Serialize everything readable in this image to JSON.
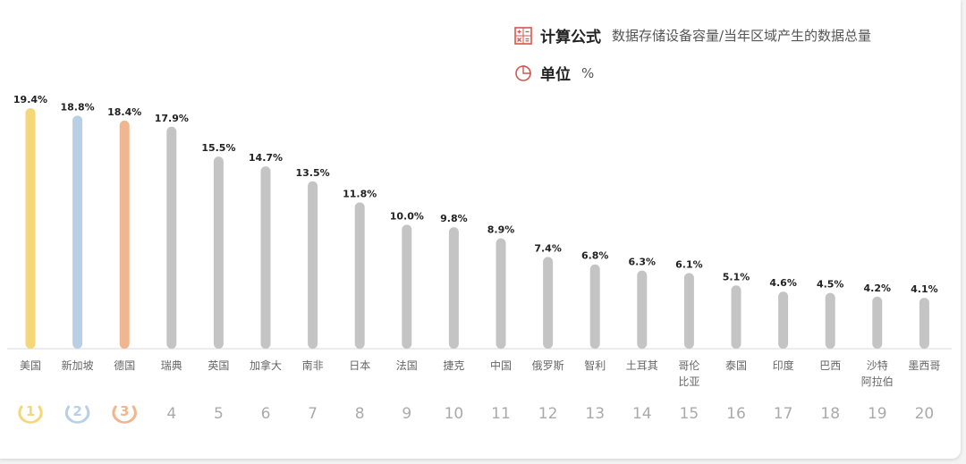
{
  "legend": {
    "formula_label": "计算公式",
    "formula_text": "数据存储设备容量/当年区域产生的数据总量",
    "unit_label": "单位",
    "unit_text": "%"
  },
  "chart_data": {
    "type": "bar",
    "categories": [
      "美国",
      "新加坡",
      "德国",
      "瑞典",
      "英国",
      "加拿大",
      "南非",
      "日本",
      "法国",
      "捷克",
      "中国",
      "俄罗斯",
      "智利",
      "土耳其",
      "哥伦比亚",
      "泰国",
      "印度",
      "巴西",
      "沙特阿拉伯",
      "墨西哥"
    ],
    "category_lines": [
      [
        "美国"
      ],
      [
        "新加坡"
      ],
      [
        "德国"
      ],
      [
        "瑞典"
      ],
      [
        "英国"
      ],
      [
        "加拿大"
      ],
      [
        "南非"
      ],
      [
        "日本"
      ],
      [
        "法国"
      ],
      [
        "捷克"
      ],
      [
        "中国"
      ],
      [
        "俄罗斯"
      ],
      [
        "智利"
      ],
      [
        "土耳其"
      ],
      [
        "哥伦",
        "比亚"
      ],
      [
        "泰国"
      ],
      [
        "印度"
      ],
      [
        "巴西"
      ],
      [
        "沙特",
        "阿拉伯"
      ],
      [
        "墨西哥"
      ]
    ],
    "values": [
      19.4,
      18.8,
      18.4,
      17.9,
      15.5,
      14.7,
      13.5,
      11.8,
      10.0,
      9.8,
      8.9,
      7.4,
      6.8,
      6.3,
      6.1,
      5.1,
      4.6,
      4.5,
      4.2,
      4.1
    ],
    "value_labels": [
      "19.4%",
      "18.8%",
      "18.4%",
      "17.9%",
      "15.5%",
      "14.7%",
      "13.5%",
      "11.8%",
      "10.0%",
      "9.8%",
      "8.9%",
      "7.4%",
      "6.8%",
      "6.3%",
      "6.1%",
      "5.1%",
      "4.6%",
      "4.5%",
      "4.2%",
      "4.1%"
    ],
    "ranks": [
      "1",
      "2",
      "3",
      "4",
      "5",
      "6",
      "7",
      "8",
      "9",
      "10",
      "11",
      "12",
      "13",
      "14",
      "15",
      "16",
      "17",
      "18",
      "19",
      "20"
    ],
    "ylim": [
      0,
      20
    ],
    "colors": {
      "gold": "#f5d77a",
      "silver": "#b8cfe6",
      "bronze": "#efb690",
      "default": "#c4c4c4",
      "gold_text": "#e8c060",
      "silver_text": "#9cb8d8",
      "bronze_text": "#e3a27a"
    }
  }
}
